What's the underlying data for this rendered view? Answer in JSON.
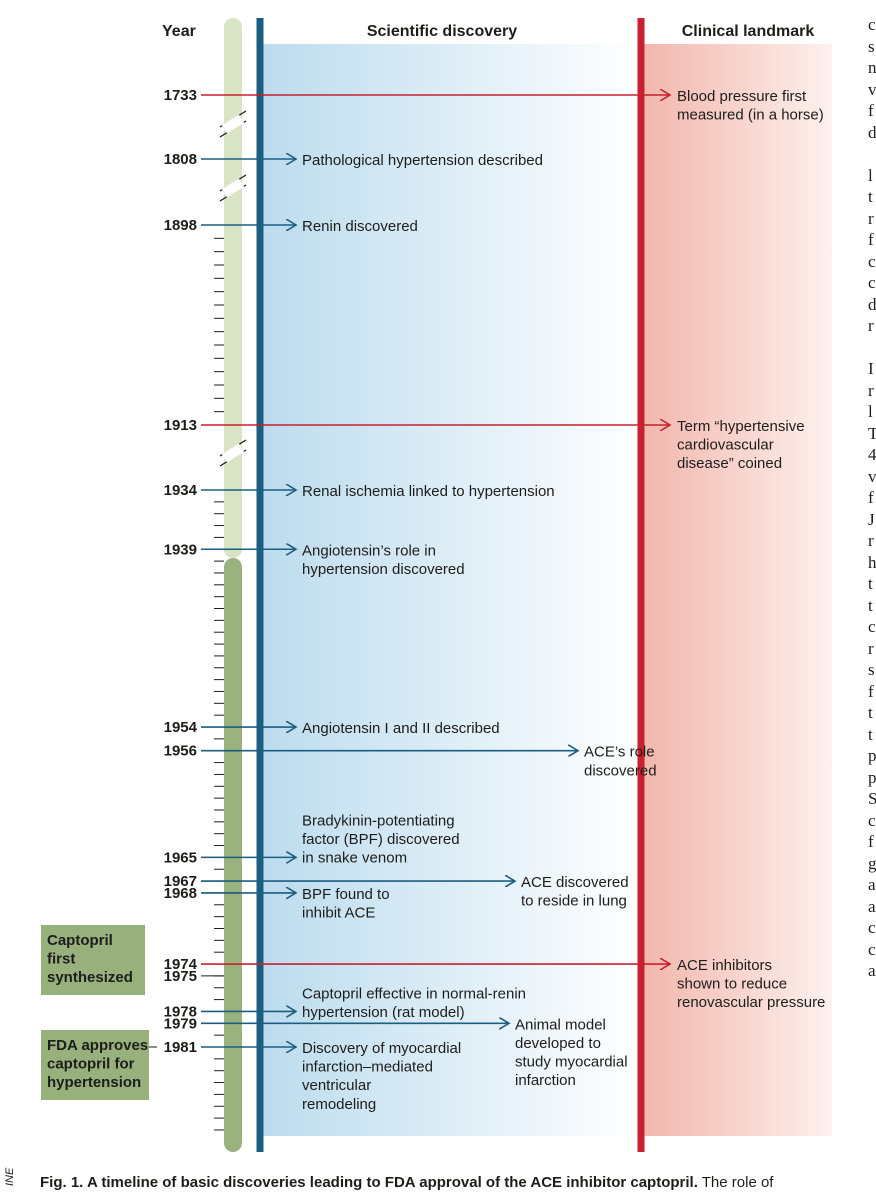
{
  "headers": {
    "year": "Year",
    "scientific": "Scientific discovery",
    "clinical": "Clinical landmark"
  },
  "colors": {
    "discovery": "#1b5e80",
    "clinical": "#c8202f",
    "era_early": "#d9e4c5",
    "era_late": "#9ab27e",
    "box": "#98b07c"
  },
  "chart_data": {
    "type": "timeline",
    "title": "",
    "axis_breaks": [
      "1733–1808",
      "1808–1898",
      "1913–1934"
    ],
    "events": [
      {
        "year": 1733,
        "kind": "clinical",
        "label": [
          "Blood pressure first",
          "measured (in a horse)"
        ]
      },
      {
        "year": 1808,
        "kind": "discovery",
        "label": [
          "Pathological hypertension described"
        ]
      },
      {
        "year": 1898,
        "kind": "discovery",
        "label": [
          "Renin discovered"
        ]
      },
      {
        "year": 1913,
        "kind": "clinical",
        "label": [
          "Term “hypertensive",
          "cardiovascular",
          "disease” coined"
        ]
      },
      {
        "year": 1934,
        "kind": "discovery",
        "label": [
          "Renal ischemia linked to hypertension"
        ]
      },
      {
        "year": 1939,
        "kind": "discovery",
        "label": [
          "Angiotensin’s role in",
          "hypertension discovered"
        ]
      },
      {
        "year": 1954,
        "kind": "discovery",
        "label": [
          "Angiotensin I and II described"
        ]
      },
      {
        "year": 1956,
        "kind": "discovery",
        "label": [
          "ACE’s role",
          "discovered"
        ]
      },
      {
        "year": 1965,
        "kind": "discovery",
        "label": [
          "Bradykinin-potentiating",
          "factor (BPF) discovered",
          "in snake venom"
        ]
      },
      {
        "year": 1967,
        "kind": "discovery",
        "label": [
          "ACE discovered",
          "to reside in lung"
        ]
      },
      {
        "year": 1968,
        "kind": "discovery",
        "label": [
          "BPF found to",
          "inhibit ACE"
        ]
      },
      {
        "year": 1974,
        "kind": "clinical",
        "label": [
          "ACE inhibitors",
          "shown to reduce",
          "renovascular pressure"
        ]
      },
      {
        "year": 1975,
        "kind": "milestone",
        "label": [
          "Captopril",
          "first",
          "synthesized"
        ]
      },
      {
        "year": 1978,
        "kind": "discovery",
        "label": [
          "Captopril effective in normal-renin",
          "hypertension (rat model)"
        ]
      },
      {
        "year": 1979,
        "kind": "discovery",
        "label": [
          "Animal model",
          "developed to",
          "study myocardial",
          "infarction"
        ]
      },
      {
        "year": 1981,
        "kind": "discovery",
        "label": [
          "Discovery of myocardial",
          "infarction–mediated",
          "ventricular",
          "remodeling"
        ]
      },
      {
        "year": 1981,
        "kind": "milestone",
        "label": [
          "FDA approves",
          "captopril for",
          "hypertension"
        ]
      }
    ]
  },
  "caption": {
    "bold": "Fig. 1. A timeline of basic discoveries leading to FDA approval of the ACE inhibitor captopril.",
    "rest": " The role of"
  },
  "side_tag": "INE",
  "body_column": "c\ns\nn\nv\nf\nd\n\nl\nt\nr\nf\nc\nc\nd\nr\n\nI\nr\nl\nT\n4\nv\nf\nJ\nr\nh\nt\nt\nc\nr\ns\nf\nt\nt\np\np\nS\nc\nf\ng\na\na\nc\nc\na"
}
